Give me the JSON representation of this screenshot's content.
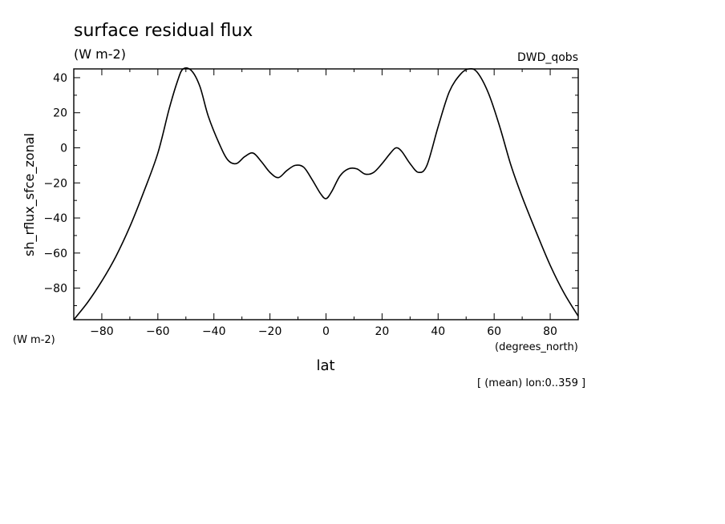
{
  "chart_data": {
    "type": "line",
    "title": "surface residual flux",
    "units": "(W m-2)",
    "source_label": "DWD_qobs",
    "ylabel": "sh_rflux_sfce_zonal",
    "y_units_label": "(W m-2)",
    "xlabel": "lat",
    "x_units_label": "(degrees_north)",
    "footnote": "[ (mean) lon:0..359 ]",
    "xlim": [
      -90,
      90
    ],
    "ylim": [
      -98,
      45
    ],
    "xticks": [
      -80,
      -60,
      -40,
      -20,
      0,
      20,
      40,
      60,
      80
    ],
    "yticks": [
      40,
      20,
      0,
      -20,
      -40,
      -60,
      -80
    ],
    "grid": false,
    "line_color": "#000000",
    "series": [
      {
        "x": [
          -90,
          -85,
          -80,
          -75,
          -70,
          -65,
          -60,
          -56,
          -53,
          -51,
          -48,
          -45,
          -42,
          -38,
          -35,
          -32,
          -29,
          -26,
          -23,
          -20,
          -17,
          -14,
          -11,
          -8,
          -5,
          -2,
          0,
          2,
          5,
          8,
          11,
          14,
          17,
          20,
          23,
          25,
          27,
          30,
          33,
          36,
          40,
          44,
          48,
          51,
          54,
          58,
          62,
          66,
          70,
          75,
          80,
          85,
          90
        ],
        "y": [
          -98,
          -88,
          -76,
          -62,
          -45,
          -25,
          -3,
          22,
          38,
          45,
          44,
          35,
          18,
          2,
          -7,
          -9,
          -5,
          -3,
          -8,
          -14,
          -17,
          -13,
          -10,
          -11,
          -18,
          -26,
          -29,
          -25,
          -16,
          -12,
          -12,
          -15,
          -14,
          -9,
          -3,
          0,
          -2,
          -9,
          -14,
          -10,
          12,
          32,
          42,
          45,
          43,
          31,
          12,
          -10,
          -28,
          -48,
          -67,
          -83,
          -96
        ]
      }
    ]
  }
}
